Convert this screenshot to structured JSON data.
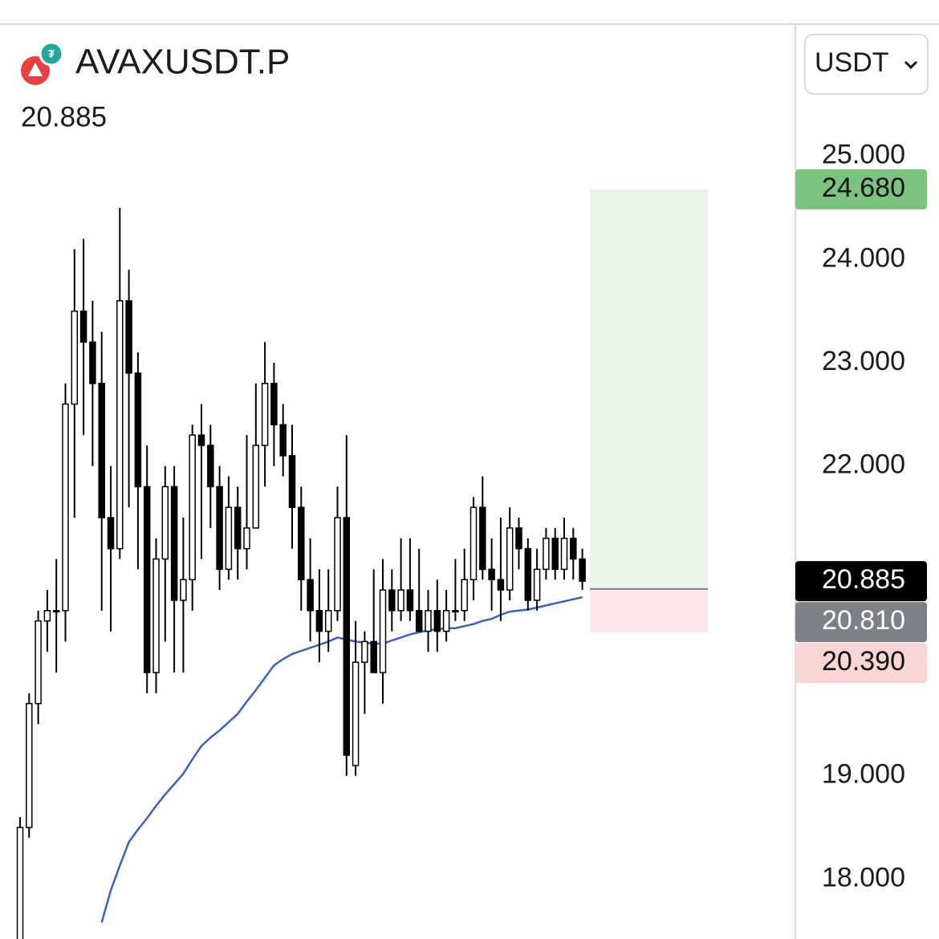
{
  "chart_data": {
    "type": "candlestick",
    "title": "AVAXUSDT.P",
    "last_price": {
      "value": 20.885,
      "label": "20.885"
    },
    "currency": "USDT",
    "ylim": [
      17.42,
      26.28
    ],
    "yticks": [
      {
        "value": 25,
        "label": "25.000"
      },
      {
        "value": 24,
        "label": "24.000"
      },
      {
        "value": 23,
        "label": "23.000"
      },
      {
        "value": 22,
        "label": "22.000"
      },
      {
        "value": 19,
        "label": "19.000"
      },
      {
        "value": 18,
        "label": "18.000"
      }
    ],
    "up_color": "#ffffff",
    "down_color": "#000000",
    "candles": {
      "open": [
        17.4,
        18.5,
        19.7,
        20.5,
        20.6,
        20.6,
        22.6,
        23.5,
        23.2,
        22.8,
        21.5,
        21.2,
        23.6,
        22.9,
        21.8,
        20.0,
        21.1,
        21.8,
        20.7,
        20.9,
        22.3,
        22.2,
        21.8,
        21.0,
        21.6,
        21.2,
        21.4,
        22.2,
        22.8,
        22.4,
        22.1,
        21.6,
        20.9,
        20.6,
        20.4,
        20.6,
        21.5,
        19.1,
        20.1,
        20.3,
        20.0,
        20.8,
        20.6,
        20.8,
        20.6,
        20.4,
        20.6,
        20.4,
        20.6,
        20.6,
        20.9,
        21.6,
        21.0,
        20.9,
        20.8,
        21.4,
        21.2,
        20.7,
        21.0,
        21.3,
        21.0,
        21.3,
        21.1
      ],
      "high": [
        18.6,
        19.8,
        20.6,
        20.8,
        21.1,
        22.8,
        24.1,
        24.2,
        23.6,
        23.3,
        22.0,
        24.5,
        23.9,
        23.1,
        22.2,
        21.3,
        22.0,
        22.0,
        21.5,
        22.4,
        22.6,
        22.4,
        22.0,
        21.9,
        21.8,
        22.3,
        22.8,
        23.2,
        23.0,
        22.6,
        22.4,
        21.8,
        21.3,
        21.0,
        21.0,
        21.8,
        22.3,
        20.5,
        20.4,
        21.0,
        21.1,
        21.0,
        21.3,
        21.3,
        21.2,
        20.8,
        20.9,
        20.8,
        21.1,
        21.2,
        21.7,
        21.9,
        21.3,
        21.5,
        21.6,
        21.5,
        21.3,
        21.2,
        21.4,
        21.4,
        21.5,
        21.4,
        21.2
      ],
      "low": [
        17.4,
        18.4,
        19.5,
        20.2,
        20.0,
        20.3,
        21.5,
        22.3,
        22.0,
        20.6,
        20.4,
        21.1,
        21.6,
        21.0,
        19.8,
        19.8,
        20.3,
        20.0,
        20.0,
        20.6,
        21.1,
        21.4,
        20.8,
        20.9,
        20.9,
        21.0,
        21.4,
        21.8,
        22.0,
        21.9,
        21.2,
        20.6,
        20.3,
        20.1,
        20.2,
        20.5,
        19.0,
        19.0,
        19.6,
        20.0,
        19.7,
        20.4,
        20.5,
        20.5,
        20.4,
        20.2,
        20.2,
        20.3,
        20.5,
        20.5,
        20.7,
        20.9,
        20.6,
        20.5,
        20.7,
        21.0,
        20.6,
        20.6,
        20.9,
        20.9,
        20.9,
        20.9,
        20.8
      ],
      "close": [
        18.5,
        19.7,
        20.5,
        20.6,
        20.6,
        22.6,
        23.5,
        23.2,
        22.8,
        21.5,
        21.2,
        23.6,
        22.9,
        21.8,
        20.0,
        21.1,
        21.8,
        20.7,
        20.9,
        22.3,
        22.2,
        21.8,
        21.0,
        21.6,
        21.2,
        21.4,
        22.2,
        22.8,
        22.4,
        22.1,
        21.6,
        20.9,
        20.6,
        20.4,
        20.6,
        21.5,
        19.2,
        20.1,
        20.3,
        20.0,
        20.8,
        20.6,
        20.8,
        20.6,
        20.4,
        20.6,
        20.4,
        20.6,
        20.6,
        20.9,
        21.6,
        21.0,
        20.9,
        20.8,
        21.4,
        21.2,
        20.7,
        21.0,
        21.3,
        21.0,
        21.3,
        21.1,
        20.885
      ]
    },
    "moving_average": {
      "color": "#3a62b8",
      "values": [
        null,
        null,
        null,
        null,
        null,
        null,
        null,
        null,
        null,
        17.58,
        17.89,
        18.13,
        18.36,
        18.48,
        18.59,
        18.71,
        18.82,
        18.92,
        19.02,
        19.16,
        19.29,
        19.37,
        19.44,
        19.52,
        19.6,
        19.72,
        19.83,
        19.95,
        20.07,
        20.13,
        20.18,
        20.21,
        20.24,
        20.27,
        20.3,
        20.34,
        20.32,
        20.3,
        20.29,
        20.28,
        20.28,
        20.31,
        20.34,
        20.37,
        20.39,
        20.41,
        20.42,
        20.43,
        20.43,
        20.45,
        20.47,
        20.5,
        20.52,
        20.56,
        20.59,
        20.6,
        20.61,
        20.63,
        20.65,
        20.67,
        20.69,
        20.71,
        20.73
      ]
    },
    "position": {
      "take_profit": {
        "value": 24.68,
        "label": "24.680",
        "color": "#7cc37f",
        "zone_color": "#e8f4e8"
      },
      "entry": {
        "value": 20.81,
        "label": "20.810",
        "color": "#7e8087"
      },
      "stop_loss": {
        "value": 20.39,
        "label": "20.390",
        "color": "#f9d5d5",
        "zone_color": "#fce8e8"
      }
    }
  }
}
